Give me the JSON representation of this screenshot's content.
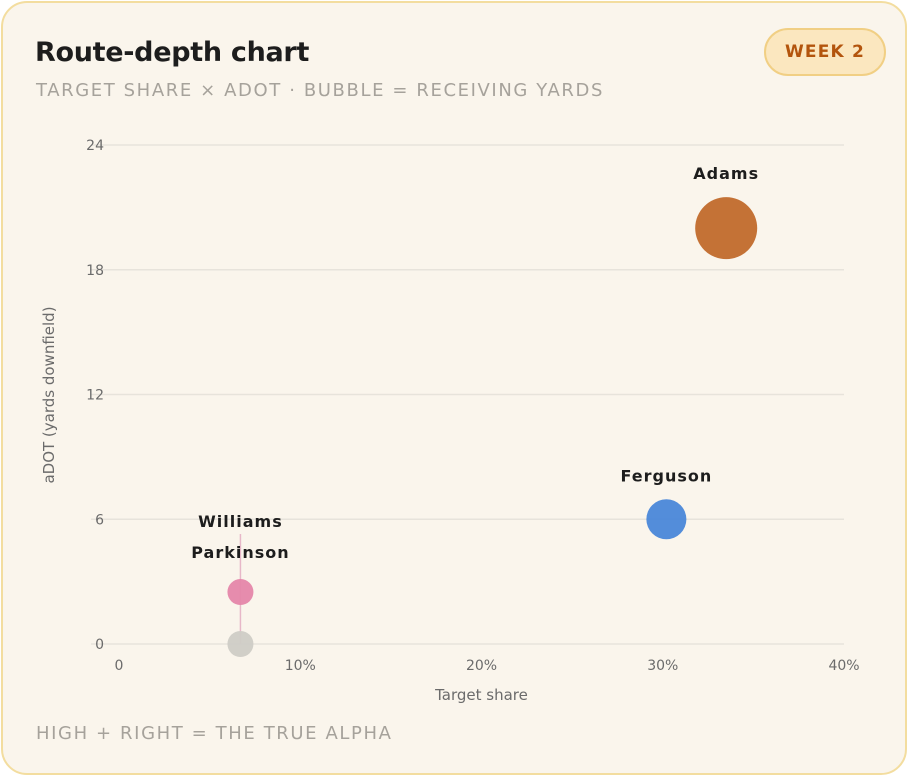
{
  "card": {
    "title": "Route-depth chart",
    "subtitle": "TARGET SHARE × ADOT · BUBBLE = RECEIVING YARDS",
    "badge": "WEEK 2",
    "footnote": "HIGH + RIGHT = THE TRUE ALPHA"
  },
  "colors": {
    "background": "#faf5ec",
    "border": "#f3dd9f",
    "badge_bg": "#fbe7bf",
    "badge_text": "#b3550d",
    "grid": "#e7e3db"
  },
  "chart_data": {
    "type": "scatter",
    "xlabel": "Target share",
    "ylabel": "aDOT (yards downfield)",
    "xlim": [
      0,
      40
    ],
    "ylim": [
      0,
      24
    ],
    "x_ticks": [
      "0",
      "10%",
      "20%",
      "30%",
      "40%"
    ],
    "y_ticks": [
      "0",
      "6",
      "12",
      "18",
      "24"
    ],
    "grid": "horizontal",
    "legend": "none",
    "series": [
      {
        "points": [
          {
            "label": "Adams",
            "x": 33.5,
            "y": 20,
            "size": "large",
            "color": "#c16a2c"
          },
          {
            "label": "Ferguson",
            "x": 30.2,
            "y": 6,
            "size": "medium",
            "color": "#4a87d9"
          },
          {
            "label": "Williams",
            "x": 6.7,
            "y": 2.5,
            "size": "small",
            "color": "#e586aa"
          },
          {
            "label": "Parkinson",
            "x": 6.7,
            "y": 0,
            "size": "small",
            "color": "#cfccc6"
          }
        ]
      }
    ]
  }
}
